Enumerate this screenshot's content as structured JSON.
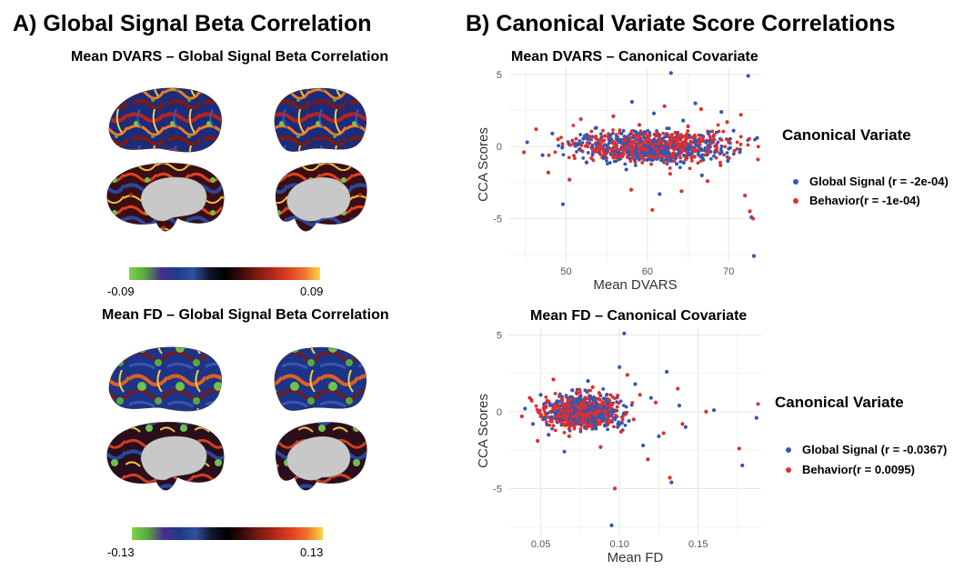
{
  "panel_a": {
    "title": "A) Global Signal Beta Correlation",
    "top": {
      "title": "Mean DVARS – Global Signal Beta Correlation",
      "colorbar_min": "-0.09",
      "colorbar_max": "0.09"
    },
    "bottom": {
      "title": "Mean FD – Global Signal Beta Correlation",
      "colorbar_min": "-0.13",
      "colorbar_max": "0.13"
    },
    "colormap": [
      "#7fd24a",
      "#5aa640",
      "#4a2d8c",
      "#1e3a8a",
      "#3050a0",
      "#101830",
      "#000000",
      "#3a0a0a",
      "#7a1a10",
      "#b02818",
      "#e04020",
      "#f07030",
      "#f8d840"
    ]
  },
  "panel_b": {
    "title": "B) Canonical Variate Score Correlations"
  },
  "colors": {
    "global_signal": "#3358b0",
    "behavior": "#e32d2d"
  },
  "chart_data": [
    {
      "type": "scatter",
      "title": "Mean DVARS – Canonical Covariate",
      "xlabel": "Mean DVARS",
      "ylabel": "CCA Scores",
      "xlim": [
        43,
        74
      ],
      "ylim": [
        -8,
        5.5
      ],
      "xticks": [
        "50",
        "60",
        "70"
      ],
      "xtick_values": [
        50,
        60,
        70
      ],
      "yticks": [
        "5",
        "0",
        "-5"
      ],
      "ytick_values": [
        5,
        0,
        -5
      ],
      "grid": true,
      "legend_title": "Canonical Variate",
      "legend_position": "right",
      "series": [
        {
          "name": "Global Signal (r = -2e-04)",
          "color": "#3358b0",
          "points": [
            [
              45.2,
              0.3
            ],
            [
              47.1,
              -0.6
            ],
            [
              48.3,
              0.9
            ],
            [
              49.6,
              -4.0
            ],
            [
              51.2,
              0.2
            ],
            [
              52.5,
              -1.1
            ],
            [
              53.7,
              1.3
            ],
            [
              55.0,
              -0.3
            ],
            [
              56.2,
              0.6
            ],
            [
              57.4,
              -1.6
            ],
            [
              58.1,
              3.1
            ],
            [
              59.2,
              0.4
            ],
            [
              60.0,
              -0.9
            ],
            [
              60.8,
              2.3
            ],
            [
              61.5,
              -3.3
            ],
            [
              62.3,
              0.7
            ],
            [
              62.9,
              5.1
            ],
            [
              63.6,
              -1.2
            ],
            [
              64.4,
              1.8
            ],
            [
              65.1,
              -0.5
            ],
            [
              65.9,
              3.0
            ],
            [
              66.7,
              -2.0
            ],
            [
              67.5,
              0.9
            ],
            [
              68.3,
              -0.4
            ],
            [
              69.1,
              2.4
            ],
            [
              69.9,
              -1.0
            ],
            [
              70.6,
              1.1
            ],
            [
              71.4,
              -0.2
            ],
            [
              72.4,
              4.9
            ],
            [
              72.8,
              -4.9
            ],
            [
              73.1,
              -7.6
            ],
            [
              73.5,
              0.6
            ]
          ]
        },
        {
          "name": "Behavior(r = -1e-04)",
          "color": "#e32d2d",
          "points": [
            [
              44.8,
              -0.4
            ],
            [
              46.3,
              1.2
            ],
            [
              47.8,
              -1.8
            ],
            [
              49.0,
              0.5
            ],
            [
              50.4,
              -2.3
            ],
            [
              51.8,
              1.9
            ],
            [
              53.1,
              -0.8
            ],
            [
              54.5,
              0.4
            ],
            [
              55.8,
              2.1
            ],
            [
              56.9,
              -0.6
            ],
            [
              58.0,
              -3.0
            ],
            [
              59.0,
              1.5
            ],
            [
              59.8,
              -0.2
            ],
            [
              60.6,
              -4.4
            ],
            [
              61.3,
              0.9
            ],
            [
              62.1,
              2.8
            ],
            [
              62.8,
              -1.9
            ],
            [
              63.5,
              0.3
            ],
            [
              64.2,
              -3.1
            ],
            [
              65.0,
              1.4
            ],
            [
              65.8,
              -0.7
            ],
            [
              66.6,
              2.6
            ],
            [
              67.4,
              -2.4
            ],
            [
              68.2,
              0.8
            ],
            [
              69.0,
              -1.3
            ],
            [
              69.8,
              1.7
            ],
            [
              70.7,
              -0.3
            ],
            [
              71.5,
              2.2
            ],
            [
              72.0,
              -3.4
            ],
            [
              72.6,
              -4.5
            ],
            [
              73.0,
              -5.0
            ],
            [
              73.6,
              -0.9
            ]
          ]
        }
      ]
    },
    {
      "type": "scatter",
      "title": "Mean FD – Canonical Covariate",
      "xlabel": "Mean FD",
      "ylabel": "CCA Scores",
      "xlim": [
        0.03,
        0.19
      ],
      "ylim": [
        -8,
        5.5
      ],
      "xticks": [
        "0.05",
        "0.10",
        "0.15"
      ],
      "xtick_values": [
        0.05,
        0.1,
        0.15
      ],
      "yticks": [
        "5",
        "0",
        "-5"
      ],
      "ytick_values": [
        5,
        0,
        -5
      ],
      "grid": true,
      "legend_title": "Canonical Variate",
      "legend_position": "right",
      "series": [
        {
          "name": "Global Signal (r = -0.0367)",
          "color": "#3358b0",
          "points": [
            [
              0.04,
              0.2
            ],
            [
              0.045,
              -0.8
            ],
            [
              0.05,
              1.1
            ],
            [
              0.055,
              -1.5
            ],
            [
              0.06,
              0.6
            ],
            [
              0.065,
              -2.6
            ],
            [
              0.07,
              1.4
            ],
            [
              0.075,
              -0.4
            ],
            [
              0.08,
              2.0
            ],
            [
              0.085,
              -1.1
            ],
            [
              0.09,
              0.3
            ],
            [
              0.095,
              -7.4
            ],
            [
              0.1,
              2.9
            ],
            [
              0.103,
              5.1
            ],
            [
              0.106,
              -0.6
            ],
            [
              0.11,
              1.8
            ],
            [
              0.115,
              -2.2
            ],
            [
              0.12,
              0.9
            ],
            [
              0.125,
              -1.6
            ],
            [
              0.13,
              2.6
            ],
            [
              0.133,
              -4.6
            ],
            [
              0.138,
              0.4
            ],
            [
              0.142,
              -1.0
            ],
            [
              0.16,
              0.1
            ],
            [
              0.178,
              -3.5
            ],
            [
              0.187,
              -0.4
            ]
          ]
        },
        {
          "name": "Behavior(r = 0.0095)",
          "color": "#e32d2d",
          "points": [
            [
              0.038,
              -0.3
            ],
            [
              0.043,
              0.9
            ],
            [
              0.048,
              -1.9
            ],
            [
              0.053,
              0.4
            ],
            [
              0.058,
              2.1
            ],
            [
              0.063,
              -0.7
            ],
            [
              0.068,
              -1.6
            ],
            [
              0.073,
              1.2
            ],
            [
              0.078,
              -0.2
            ],
            [
              0.083,
              1.6
            ],
            [
              0.088,
              -2.3
            ],
            [
              0.093,
              0.8
            ],
            [
              0.097,
              -5.0
            ],
            [
              0.101,
              -1.3
            ],
            [
              0.105,
              2.4
            ],
            [
              0.109,
              -0.5
            ],
            [
              0.113,
              1.1
            ],
            [
              0.118,
              -3.1
            ],
            [
              0.123,
              0.6
            ],
            [
              0.128,
              -1.4
            ],
            [
              0.132,
              -4.3
            ],
            [
              0.137,
              1.5
            ],
            [
              0.14,
              -0.8
            ],
            [
              0.155,
              0.0
            ],
            [
              0.176,
              -2.4
            ],
            [
              0.188,
              0.5
            ]
          ]
        }
      ]
    }
  ]
}
